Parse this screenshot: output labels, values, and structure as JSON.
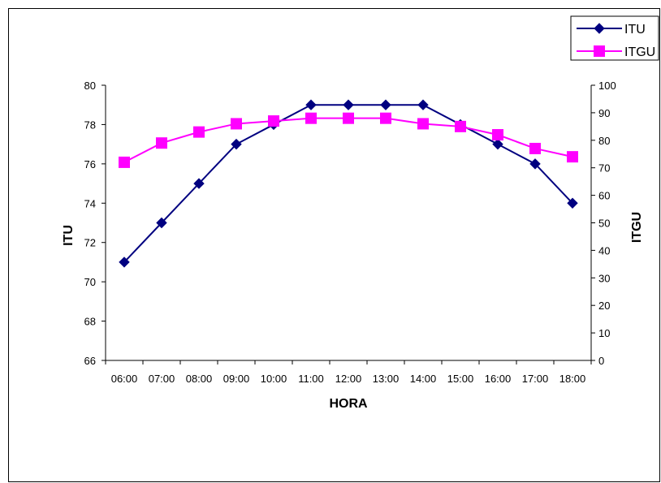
{
  "chart_data": {
    "type": "line",
    "categories": [
      "06:00",
      "07:00",
      "08:00",
      "09:00",
      "10:00",
      "11:00",
      "12:00",
      "13:00",
      "14:00",
      "15:00",
      "16:00",
      "17:00",
      "18:00"
    ],
    "series": [
      {
        "name": "ITU",
        "axis": "left",
        "color": "#000080",
        "marker": "diamond",
        "values": [
          71,
          73,
          75,
          77,
          78,
          79,
          79,
          79,
          79,
          78,
          77,
          76,
          74
        ]
      },
      {
        "name": "ITGU",
        "axis": "right",
        "color": "#FF00FF",
        "marker": "square",
        "values": [
          72,
          79,
          83,
          86,
          87,
          88,
          88,
          88,
          86,
          85,
          82,
          77,
          74
        ]
      }
    ],
    "xlabel": "HORA",
    "ylabel": "ITU",
    "y2label": "ITGU",
    "ylim": [
      66,
      80
    ],
    "yticks": [
      66,
      68,
      70,
      72,
      74,
      76,
      78,
      80
    ],
    "y2lim": [
      0,
      100
    ],
    "y2ticks": [
      0,
      10,
      20,
      30,
      40,
      50,
      60,
      70,
      80,
      90,
      100
    ],
    "legend": {
      "placement": "top-right",
      "entries": [
        "ITU",
        "ITGU"
      ]
    },
    "grid": false
  }
}
